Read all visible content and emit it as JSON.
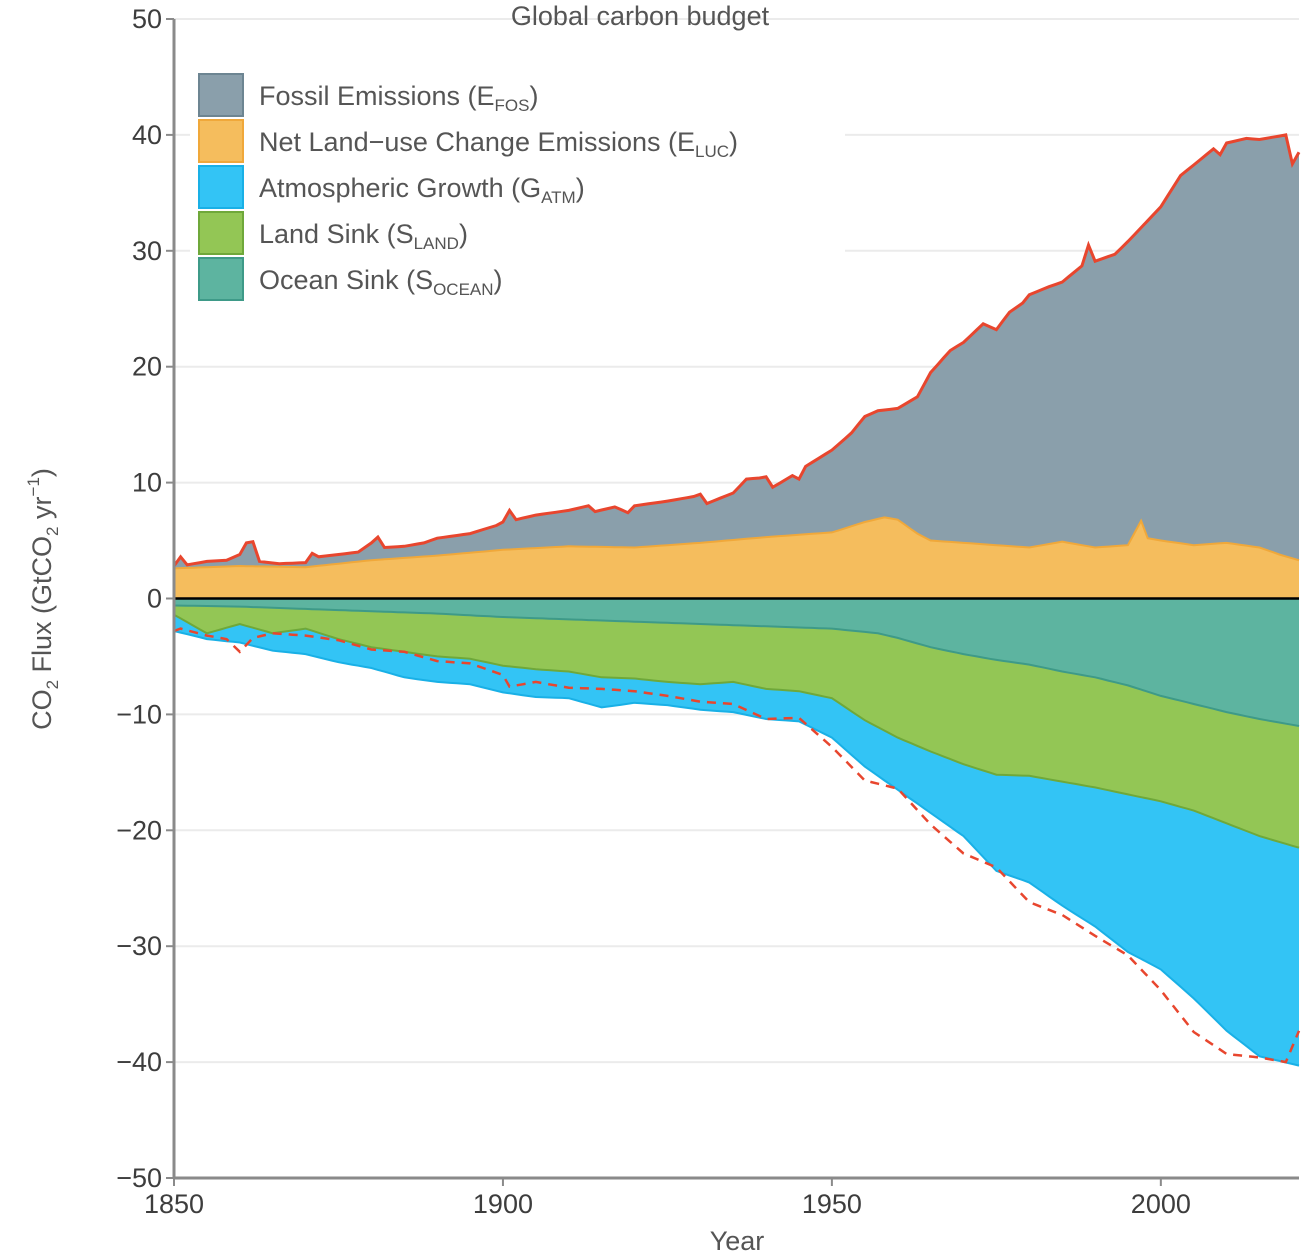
{
  "chart_data": {
    "type": "area",
    "title": "Global carbon budget",
    "xlabel": "Year",
    "ylabel": {
      "base": "CO",
      "sub1": "2",
      "mid": " Flux (GtCO",
      "sub2": "2",
      "mid2": " yr",
      "sup": "−1",
      "end": ")"
    },
    "xlim": [
      1850,
      2021
    ],
    "ylim": [
      -50,
      50
    ],
    "x_ticks": [
      1850,
      1900,
      1950,
      2000
    ],
    "y_ticks": [
      50,
      40,
      30,
      20,
      10,
      0,
      -10,
      -20,
      -30,
      -40,
      -50
    ],
    "y_tick_labels": [
      "50",
      "40",
      "30",
      "20",
      "10",
      "0",
      "−10",
      "−20",
      "−30",
      "−40",
      "−50"
    ],
    "grid": "horizontal",
    "legend_position": "top-left",
    "colors": {
      "fossil": "#8a9fab",
      "luc": "#f5bd5d",
      "atm": "#33c4f5",
      "land": "#93c655",
      "ocean": "#5db4a0",
      "fossil_edge": "#6d8592",
      "luc_edge": "#f0a83a",
      "atm_edge": "#19b0e6",
      "land_edge": "#6fa83a",
      "ocean_edge": "#3e9a88",
      "total_line": "#e8462e",
      "zero_line": "#000000"
    },
    "legend": [
      {
        "key": "fossil",
        "label": "Fossil Emissions (E",
        "sub": "FOS",
        "end": ")"
      },
      {
        "key": "luc",
        "label": "Net Land−use Change Emissions (E",
        "sub": "LUC",
        "end": ")"
      },
      {
        "key": "atm",
        "label": "Atmospheric Growth (G",
        "sub": "ATM",
        "end": ")"
      },
      {
        "key": "land",
        "label": "Land Sink (S",
        "sub": "LAND",
        "end": ")"
      },
      {
        "key": "ocean",
        "label": "Ocean Sink (S",
        "sub": "OCEAN",
        "end": ")"
      }
    ],
    "series_keypoints": {
      "fossil_cumulative_top": [
        [
          1850,
          2.8
        ],
        [
          1851,
          3.6
        ],
        [
          1852,
          2.9
        ],
        [
          1855,
          3.2
        ],
        [
          1858,
          3.3
        ],
        [
          1860,
          3.8
        ],
        [
          1861,
          4.8
        ],
        [
          1862,
          4.9
        ],
        [
          1863,
          3.2
        ],
        [
          1866,
          3.0
        ],
        [
          1870,
          3.1
        ],
        [
          1871,
          3.9
        ],
        [
          1872,
          3.6
        ],
        [
          1875,
          3.8
        ],
        [
          1878,
          4.0
        ],
        [
          1880,
          4.8
        ],
        [
          1881,
          5.3
        ],
        [
          1882,
          4.4
        ],
        [
          1885,
          4.5
        ],
        [
          1888,
          4.8
        ],
        [
          1890,
          5.2
        ],
        [
          1895,
          5.6
        ],
        [
          1899,
          6.3
        ],
        [
          1900,
          6.6
        ],
        [
          1901,
          7.6
        ],
        [
          1902,
          6.8
        ],
        [
          1905,
          7.2
        ],
        [
          1910,
          7.6
        ],
        [
          1913,
          8.0
        ],
        [
          1914,
          7.5
        ],
        [
          1917,
          7.9
        ],
        [
          1919,
          7.4
        ],
        [
          1920,
          8.0
        ],
        [
          1925,
          8.4
        ],
        [
          1929,
          8.8
        ],
        [
          1930,
          9.0
        ],
        [
          1931,
          8.2
        ],
        [
          1935,
          9.1
        ],
        [
          1937,
          10.3
        ],
        [
          1939,
          10.4
        ],
        [
          1940,
          10.5
        ],
        [
          1941,
          9.6
        ],
        [
          1944,
          10.6
        ],
        [
          1945,
          10.3
        ],
        [
          1946,
          11.4
        ],
        [
          1948,
          12.1
        ],
        [
          1950,
          12.8
        ],
        [
          1953,
          14.3
        ],
        [
          1955,
          15.7
        ],
        [
          1957,
          16.2
        ],
        [
          1960,
          16.4
        ],
        [
          1963,
          17.4
        ],
        [
          1965,
          19.5
        ],
        [
          1968,
          21.4
        ],
        [
          1970,
          22.1
        ],
        [
          1973,
          23.7
        ],
        [
          1975,
          23.2
        ],
        [
          1977,
          24.7
        ],
        [
          1979,
          25.5
        ],
        [
          1980,
          26.2
        ],
        [
          1983,
          26.9
        ],
        [
          1985,
          27.3
        ],
        [
          1988,
          28.7
        ],
        [
          1989,
          30.5
        ],
        [
          1990,
          29.1
        ],
        [
          1993,
          29.7
        ],
        [
          1995,
          30.8
        ],
        [
          1998,
          32.6
        ],
        [
          2000,
          33.8
        ],
        [
          2003,
          36.5
        ],
        [
          2005,
          37.4
        ],
        [
          2008,
          38.8
        ],
        [
          2009,
          38.3
        ],
        [
          2010,
          39.3
        ],
        [
          2013,
          39.7
        ],
        [
          2015,
          39.6
        ],
        [
          2017,
          39.8
        ],
        [
          2019,
          40.0
        ],
        [
          2020,
          37.5
        ],
        [
          2021,
          38.5
        ]
      ],
      "luc_top": [
        [
          1850,
          2.6
        ],
        [
          1855,
          2.7
        ],
        [
          1860,
          2.8
        ],
        [
          1870,
          2.7
        ],
        [
          1880,
          3.3
        ],
        [
          1890,
          3.7
        ],
        [
          1900,
          4.2
        ],
        [
          1910,
          4.5
        ],
        [
          1920,
          4.4
        ],
        [
          1930,
          4.8
        ],
        [
          1940,
          5.3
        ],
        [
          1950,
          5.7
        ],
        [
          1955,
          6.6
        ],
        [
          1958,
          7.0
        ],
        [
          1960,
          6.8
        ],
        [
          1963,
          5.6
        ],
        [
          1965,
          5.0
        ],
        [
          1970,
          4.8
        ],
        [
          1975,
          4.6
        ],
        [
          1980,
          4.4
        ],
        [
          1985,
          4.9
        ],
        [
          1990,
          4.4
        ],
        [
          1995,
          4.6
        ],
        [
          1997,
          6.7
        ],
        [
          1998,
          5.2
        ],
        [
          2000,
          5.0
        ],
        [
          2005,
          4.6
        ],
        [
          2010,
          4.8
        ],
        [
          2015,
          4.4
        ],
        [
          2018,
          3.8
        ],
        [
          2021,
          3.3
        ]
      ],
      "ocean_bottom": [
        [
          1850,
          -0.6
        ],
        [
          1860,
          -0.7
        ],
        [
          1870,
          -0.9
        ],
        [
          1880,
          -1.1
        ],
        [
          1890,
          -1.3
        ],
        [
          1900,
          -1.6
        ],
        [
          1910,
          -1.8
        ],
        [
          1920,
          -2.0
        ],
        [
          1930,
          -2.2
        ],
        [
          1940,
          -2.4
        ],
        [
          1950,
          -2.6
        ],
        [
          1957,
          -3.0
        ],
        [
          1960,
          -3.4
        ],
        [
          1965,
          -4.2
        ],
        [
          1970,
          -4.8
        ],
        [
          1975,
          -5.3
        ],
        [
          1980,
          -5.7
        ],
        [
          1985,
          -6.3
        ],
        [
          1990,
          -6.8
        ],
        [
          1995,
          -7.5
        ],
        [
          2000,
          -8.4
        ],
        [
          2005,
          -9.1
        ],
        [
          2010,
          -9.8
        ],
        [
          2015,
          -10.4
        ],
        [
          2021,
          -11.0
        ]
      ],
      "land_bottom": [
        [
          1850,
          -1.4
        ],
        [
          1855,
          -3.0
        ],
        [
          1860,
          -2.2
        ],
        [
          1865,
          -3.0
        ],
        [
          1870,
          -2.6
        ],
        [
          1875,
          -3.5
        ],
        [
          1880,
          -4.2
        ],
        [
          1885,
          -4.6
        ],
        [
          1890,
          -5.0
        ],
        [
          1895,
          -5.2
        ],
        [
          1900,
          -5.8
        ],
        [
          1905,
          -6.1
        ],
        [
          1910,
          -6.3
        ],
        [
          1915,
          -6.8
        ],
        [
          1920,
          -6.9
        ],
        [
          1925,
          -7.2
        ],
        [
          1930,
          -7.4
        ],
        [
          1935,
          -7.2
        ],
        [
          1940,
          -7.8
        ],
        [
          1945,
          -8.0
        ],
        [
          1950,
          -8.6
        ],
        [
          1955,
          -10.5
        ],
        [
          1960,
          -12.0
        ],
        [
          1965,
          -13.2
        ],
        [
          1970,
          -14.3
        ],
        [
          1975,
          -15.2
        ],
        [
          1980,
          -15.3
        ],
        [
          1985,
          -15.8
        ],
        [
          1990,
          -16.3
        ],
        [
          1995,
          -16.9
        ],
        [
          2000,
          -17.5
        ],
        [
          2005,
          -18.3
        ],
        [
          2010,
          -19.4
        ],
        [
          2015,
          -20.5
        ],
        [
          2021,
          -21.5
        ]
      ],
      "atm_bottom": [
        [
          1850,
          -2.8
        ],
        [
          1855,
          -3.5
        ],
        [
          1860,
          -3.8
        ],
        [
          1865,
          -4.5
        ],
        [
          1870,
          -4.8
        ],
        [
          1875,
          -5.5
        ],
        [
          1880,
          -6.0
        ],
        [
          1885,
          -6.8
        ],
        [
          1890,
          -7.2
        ],
        [
          1895,
          -7.4
        ],
        [
          1900,
          -8.1
        ],
        [
          1905,
          -8.5
        ],
        [
          1910,
          -8.6
        ],
        [
          1915,
          -9.4
        ],
        [
          1920,
          -9.0
        ],
        [
          1925,
          -9.2
        ],
        [
          1930,
          -9.6
        ],
        [
          1935,
          -9.8
        ],
        [
          1940,
          -10.4
        ],
        [
          1945,
          -10.6
        ],
        [
          1950,
          -12.0
        ],
        [
          1955,
          -14.5
        ],
        [
          1960,
          -16.5
        ],
        [
          1965,
          -18.5
        ],
        [
          1970,
          -20.5
        ],
        [
          1975,
          -23.5
        ],
        [
          1980,
          -24.5
        ],
        [
          1985,
          -26.5
        ],
        [
          1990,
          -28.3
        ],
        [
          1995,
          -30.5
        ],
        [
          2000,
          -32.0
        ],
        [
          2005,
          -34.5
        ],
        [
          2010,
          -37.3
        ],
        [
          2015,
          -39.5
        ],
        [
          2021,
          -40.3
        ]
      ],
      "total_sink_dashed": [
        [
          1850,
          -2.8
        ],
        [
          1851,
          -2.6
        ],
        [
          1855,
          -3.2
        ],
        [
          1858,
          -3.5
        ],
        [
          1860,
          -4.6
        ],
        [
          1862,
          -3.4
        ],
        [
          1865,
          -3.0
        ],
        [
          1870,
          -3.2
        ],
        [
          1875,
          -3.6
        ],
        [
          1880,
          -4.4
        ],
        [
          1885,
          -4.6
        ],
        [
          1890,
          -5.4
        ],
        [
          1895,
          -5.6
        ],
        [
          1900,
          -6.6
        ],
        [
          1901,
          -7.6
        ],
        [
          1905,
          -7.2
        ],
        [
          1910,
          -7.7
        ],
        [
          1915,
          -7.8
        ],
        [
          1920,
          -8.0
        ],
        [
          1925,
          -8.4
        ],
        [
          1930,
          -8.9
        ],
        [
          1935,
          -9.1
        ],
        [
          1940,
          -10.4
        ],
        [
          1945,
          -10.3
        ],
        [
          1950,
          -12.8
        ],
        [
          1955,
          -15.7
        ],
        [
          1960,
          -16.4
        ],
        [
          1965,
          -19.5
        ],
        [
          1970,
          -22.0
        ],
        [
          1975,
          -23.2
        ],
        [
          1980,
          -26.2
        ],
        [
          1985,
          -27.3
        ],
        [
          1990,
          -29.1
        ],
        [
          1995,
          -30.8
        ],
        [
          2000,
          -33.8
        ],
        [
          2005,
          -37.4
        ],
        [
          2010,
          -39.3
        ],
        [
          2015,
          -39.6
        ],
        [
          2019,
          -40.0
        ],
        [
          2021,
          -37.3
        ]
      ]
    }
  }
}
